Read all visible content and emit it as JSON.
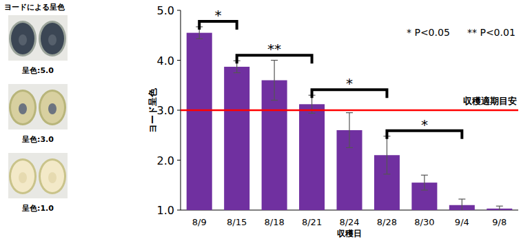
{
  "panel": {
    "title": "ヨードによる呈色",
    "samples": [
      {
        "label": "呈色:5.0"
      },
      {
        "label": "呈色:3.0"
      },
      {
        "label": "呈色:1.0"
      }
    ]
  },
  "chart_data": {
    "type": "bar",
    "y_label": "ヨード呈色",
    "x_label": "収穫日",
    "categories": [
      "8/9",
      "8/15",
      "8/18",
      "8/21",
      "8/24",
      "8/28",
      "8/30",
      "9/4",
      "9/8"
    ],
    "values": [
      4.55,
      3.87,
      3.6,
      3.12,
      2.6,
      2.1,
      1.55,
      1.1,
      1.03
    ],
    "errors": [
      0.12,
      0.12,
      0.4,
      0.18,
      0.35,
      0.38,
      0.15,
      0.12,
      0.05
    ],
    "color": "#7030a0",
    "ylim": [
      1,
      5
    ],
    "yticks": [
      {
        "value": 1,
        "label": "1.0"
      },
      {
        "value": 2,
        "label": "2.0"
      },
      {
        "value": 3,
        "label": "3.0"
      },
      {
        "value": 4,
        "label": "4.0"
      },
      {
        "value": 5,
        "label": "5.0"
      }
    ],
    "grid": false,
    "reference_line": {
      "value": 3,
      "label": "収穫適期目安"
    },
    "significance": [
      {
        "from": "8/9",
        "to": "8/15",
        "label": "*"
      },
      {
        "from": "8/15",
        "to": "8/21",
        "label": "**"
      },
      {
        "from": "8/21",
        "to": "8/28",
        "label": "*"
      },
      {
        "from": "8/28",
        "to": "9/4",
        "label": "*"
      }
    ],
    "significance_legend": [
      "* P<0.05",
      "** P<0.01"
    ]
  }
}
